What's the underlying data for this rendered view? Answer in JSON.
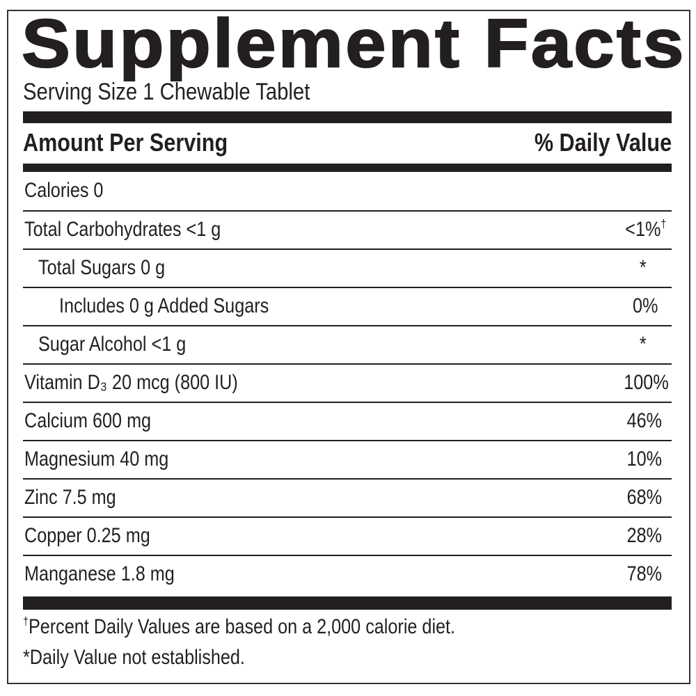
{
  "title": "Supplement Facts",
  "serving_size": "Serving Size 1 Chewable Tablet",
  "header": {
    "amount": "Amount Per Serving",
    "daily_value": "% Daily Value"
  },
  "rows": [
    {
      "name": "Calories 0",
      "dv": ""
    },
    {
      "name": "Total Carbohydrates <1 g",
      "dv": "<1%",
      "dv_mark": "†"
    },
    {
      "name": "Total Sugars 0 g",
      "dv": "*"
    },
    {
      "name": "Includes 0 g Added Sugars",
      "dv": "0%"
    },
    {
      "name": "Sugar Alcohol <1 g",
      "dv": "*"
    },
    {
      "name": "Vitamin D₃ 20 mcg (800 IU)",
      "dv": "100%"
    },
    {
      "name": "Calcium 600 mg",
      "dv": "46%"
    },
    {
      "name": "Magnesium 40 mg",
      "dv": "10%"
    },
    {
      "name": "Zinc 7.5 mg",
      "dv": "68%"
    },
    {
      "name": "Copper 0.25 mg",
      "dv": "28%"
    },
    {
      "name": "Manganese 1.8 mg",
      "dv": "78%"
    }
  ],
  "footnotes": [
    {
      "mark": "†",
      "text": "Percent Daily Values are based on a 2,000 calorie diet."
    },
    {
      "mark": "",
      "text": "*Daily Value not established."
    }
  ]
}
